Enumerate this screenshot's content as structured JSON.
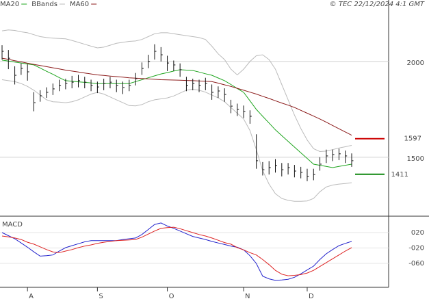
{
  "chart_data": [
    {
      "type": "hlc",
      "source": "© TEC 22/12/2024 4:1 GMT",
      "ylim": [
        1196,
        2321
      ],
      "yticks": [
        1500,
        2000
      ],
      "grid": true,
      "bar_color": "#111111",
      "high": [
        2085,
        2060,
        1975,
        1990,
        1985,
        1840,
        1850,
        1865,
        1885,
        1905,
        1910,
        1925,
        1930,
        1920,
        1905,
        1895,
        1910,
        1920,
        1905,
        1895,
        1905,
        1940,
        1995,
        2035,
        2090,
        2075,
        2030,
        2005,
        1990,
        1920,
        1910,
        1905,
        1915,
        1880,
        1870,
        1860,
        1800,
        1780,
        1770,
        1745,
        1620,
        1475,
        1480,
        1490,
        1470,
        1470,
        1460,
        1450,
        1440,
        1440,
        1500,
        1540,
        1540,
        1545,
        1535,
        1520
      ],
      "low": [
        2010,
        1960,
        1880,
        1930,
        1900,
        1740,
        1790,
        1810,
        1825,
        1845,
        1855,
        1860,
        1865,
        1860,
        1845,
        1835,
        1850,
        1860,
        1840,
        1830,
        1845,
        1875,
        1930,
        1965,
        2010,
        2000,
        1950,
        1950,
        1920,
        1845,
        1850,
        1840,
        1850,
        1800,
        1810,
        1790,
        1730,
        1715,
        1705,
        1675,
        1440,
        1405,
        1410,
        1420,
        1400,
        1410,
        1395,
        1390,
        1375,
        1380,
        1430,
        1470,
        1480,
        1485,
        1470,
        1450
      ],
      "close": [
        2053,
        2017,
        1928,
        1964,
        1946,
        1785,
        1821,
        1839,
        1857,
        1875,
        1885,
        1892,
        1900,
        1892,
        1875,
        1867,
        1885,
        1892,
        1875,
        1864,
        1875,
        1910,
        1964,
        2000,
        2053,
        2035,
        1992,
        1982,
        1957,
        1875,
        1885,
        1875,
        1885,
        1839,
        1846,
        1828,
        1767,
        1750,
        1739,
        1714,
        1482,
        1435,
        1446,
        1457,
        1435,
        1446,
        1428,
        1421,
        1400,
        1410,
        1464,
        1507,
        1514,
        1518,
        1507,
        1482
      ],
      "series": [
        {
          "name": "MA20",
          "color": "#1ea51e",
          "values": [
            2007,
            2002,
            1997,
            1992,
            1987,
            1982,
            1966,
            1949,
            1933,
            1916,
            1900,
            1897,
            1894,
            1891,
            1888,
            1885,
            1885,
            1885,
            1885,
            1885,
            1885,
            1895,
            1905,
            1915,
            1925,
            1935,
            1942,
            1950,
            1957,
            1955,
            1953,
            1945,
            1936,
            1928,
            1914,
            1900,
            1880,
            1859,
            1839,
            1795,
            1750,
            1714,
            1679,
            1643,
            1613,
            1583,
            1553,
            1523,
            1494,
            1464,
            1458,
            1452,
            1446,
            1452,
            1458,
            1464
          ]
        },
        {
          "name": "BBands",
          "color": "#bbbbbb",
          "upper": [
            2160,
            2165,
            2162,
            2155,
            2150,
            2140,
            2130,
            2125,
            2122,
            2120,
            2118,
            2110,
            2100,
            2090,
            2080,
            2071,
            2075,
            2085,
            2095,
            2100,
            2105,
            2107,
            2115,
            2130,
            2145,
            2150,
            2150,
            2145,
            2140,
            2135,
            2130,
            2125,
            2115,
            2080,
            2040,
            2010,
            1960,
            1930,
            1960,
            2000,
            2030,
            2035,
            2010,
            1960,
            1880,
            1800,
            1720,
            1650,
            1590,
            1545,
            1530,
            1532,
            1540,
            1548,
            1555,
            1562
          ],
          "lower": [
            1905,
            1900,
            1895,
            1885,
            1870,
            1850,
            1825,
            1800,
            1790,
            1788,
            1785,
            1790,
            1800,
            1815,
            1830,
            1839,
            1830,
            1815,
            1800,
            1785,
            1770,
            1768,
            1775,
            1790,
            1800,
            1805,
            1810,
            1820,
            1835,
            1850,
            1855,
            1850,
            1840,
            1825,
            1810,
            1790,
            1760,
            1730,
            1700,
            1640,
            1540,
            1430,
            1360,
            1310,
            1285,
            1275,
            1270,
            1270,
            1272,
            1285,
            1320,
            1345,
            1355,
            1360,
            1363,
            1367
          ]
        },
        {
          "name": "MA60",
          "color": "#8b1a1a",
          "values": [
            2017,
            2011,
            2004,
            1998,
            1991,
            1985,
            1979,
            1973,
            1967,
            1961,
            1955,
            1950,
            1945,
            1940,
            1935,
            1930,
            1927,
            1924,
            1921,
            1918,
            1915,
            1913,
            1911,
            1909,
            1907,
            1905,
            1904,
            1903,
            1902,
            1901,
            1900,
            1898,
            1897,
            1895,
            1887,
            1878,
            1870,
            1860,
            1850,
            1840,
            1830,
            1818,
            1807,
            1795,
            1783,
            1772,
            1760,
            1745,
            1730,
            1715,
            1700,
            1683,
            1666,
            1649,
            1632,
            1615
          ]
        }
      ],
      "levels": [
        {
          "value": 1597,
          "color": "#cc0000"
        },
        {
          "value": 1411,
          "color": "#118811"
        }
      ]
    },
    {
      "type": "line",
      "title": "MACD",
      "ylim": [
        -122,
        59
      ],
      "yticks": [
        {
          "value": 20,
          "label": "020"
        },
        {
          "value": -20,
          "label": "-020"
        },
        {
          "value": -60,
          "label": "-060"
        }
      ],
      "grid": true,
      "categories": [
        null,
        null,
        null,
        null,
        "A",
        null,
        null,
        null,
        null,
        null,
        null,
        null,
        null,
        null,
        null,
        "S",
        null,
        null,
        null,
        null,
        null,
        null,
        null,
        null,
        null,
        null,
        "O",
        null,
        null,
        null,
        null,
        null,
        null,
        null,
        null,
        null,
        null,
        null,
        "N",
        null,
        null,
        null,
        null,
        null,
        null,
        null,
        null,
        null,
        "D",
        null,
        null,
        null,
        null,
        null,
        null,
        null
      ],
      "series": [
        {
          "color": "#2222cc",
          "values": [
            20,
            12,
            4,
            -7,
            -18,
            -30,
            -41,
            -40,
            -38,
            -28,
            -19,
            -14,
            -9,
            -4,
            -1,
            -1,
            -1,
            -1,
            -1,
            2,
            4,
            6,
            15,
            28,
            41,
            45,
            37,
            31,
            24,
            17,
            10,
            6,
            2,
            -3,
            -7,
            -11,
            -15,
            -18,
            -25,
            -40,
            -60,
            -93,
            -100,
            -104,
            -103,
            -101,
            -96,
            -87,
            -77,
            -67,
            -50,
            -35,
            -24,
            -14,
            -8,
            -3
          ]
        },
        {
          "color": "#dd2222",
          "values": [
            11,
            9,
            6,
            2,
            -5,
            -10,
            -17,
            -24,
            -30,
            -32,
            -28,
            -24,
            -19,
            -15,
            -12,
            -8,
            -5,
            -3,
            -1,
            0,
            1,
            2,
            8,
            16,
            24,
            31,
            33,
            34,
            30,
            25,
            20,
            15,
            11,
            6,
            0,
            -6,
            -10,
            -19,
            -25,
            -32,
            -38,
            -50,
            -63,
            -78,
            -88,
            -92,
            -91,
            -89,
            -85,
            -78,
            -68,
            -58,
            -48,
            -38,
            -28,
            -19
          ]
        }
      ]
    }
  ]
}
